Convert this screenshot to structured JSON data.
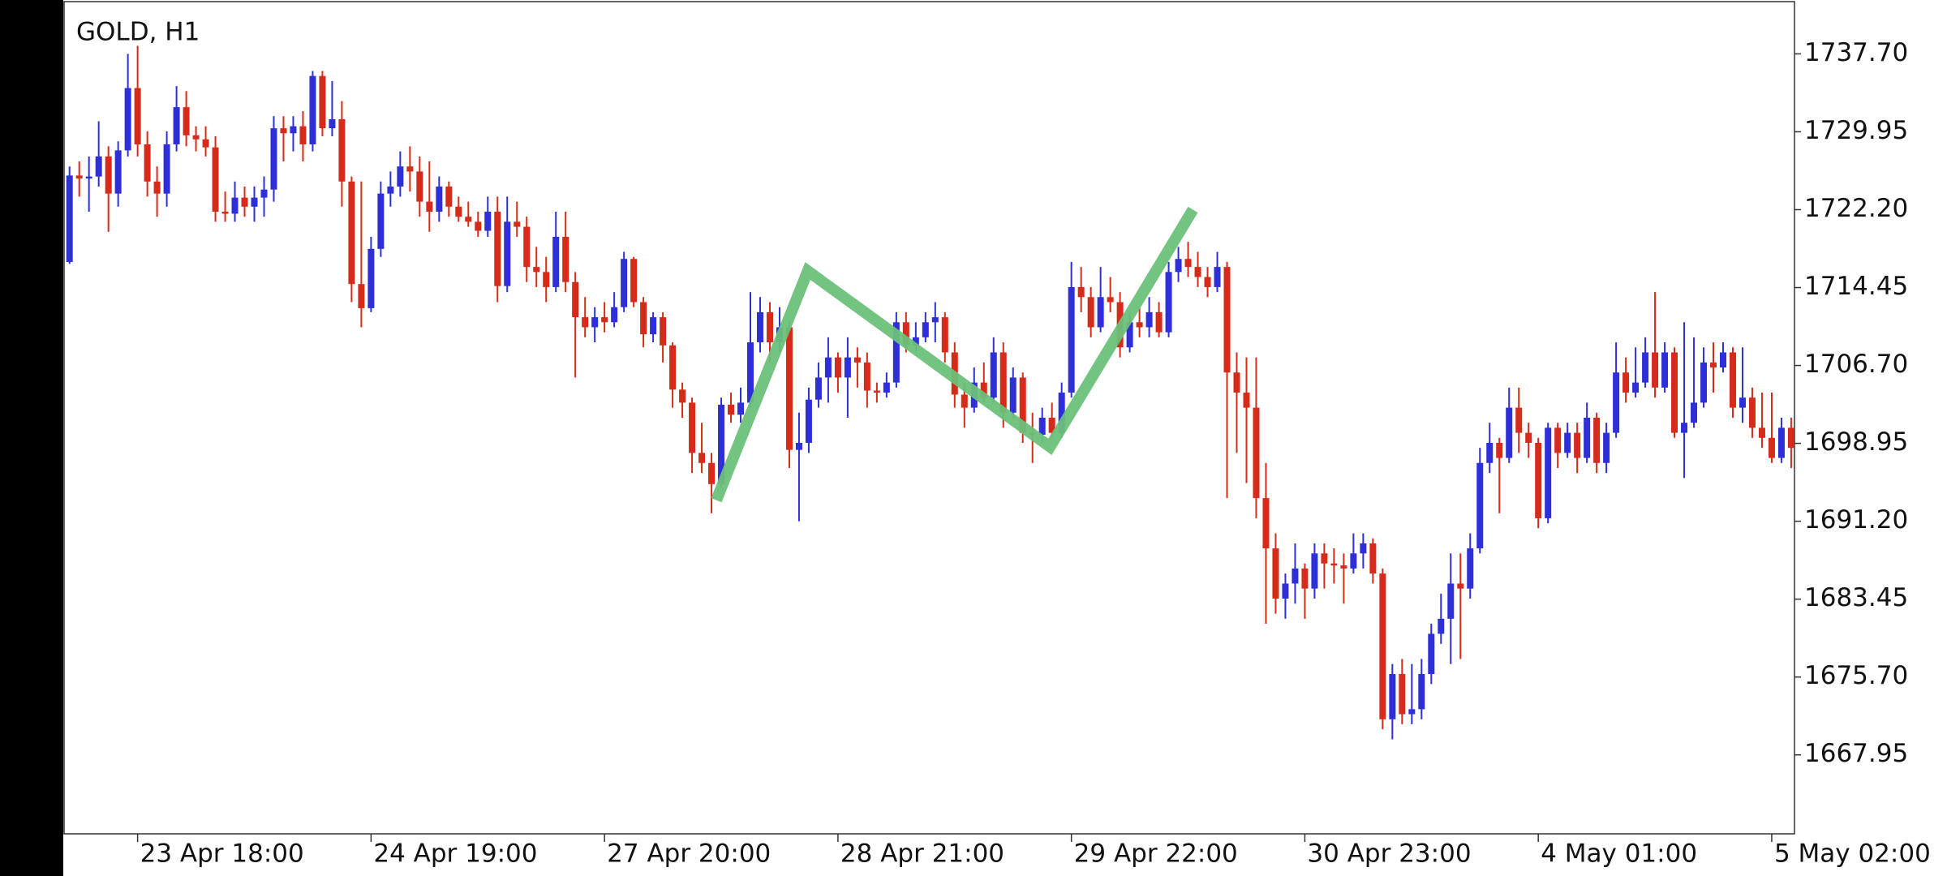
{
  "chart_data": {
    "type": "candlestick",
    "title": "GOLD, H1",
    "up_color": "#2f2fd8",
    "down_color": "#d42b1b",
    "ylim": [
      1660.1,
      1742.9
    ],
    "yticks": [
      1667.95,
      {
        "value": 1675.7,
        "label": "1675.70"
      },
      1683.45,
      {
        "value": 1691.2,
        "label": "1691.20"
      },
      1698.95,
      {
        "value": 1706.7,
        "label": "1706.70"
      },
      1714.45,
      {
        "value": 1722.2,
        "label": "1722.20"
      },
      1729.95,
      {
        "value": 1737.7,
        "label": "1737.70"
      }
    ],
    "x": [
      null,
      null,
      null,
      null,
      null,
      null,
      null,
      "23 Apr 18:00",
      null,
      null,
      null,
      null,
      null,
      null,
      null,
      null,
      null,
      null,
      null,
      null,
      null,
      null,
      null,
      null,
      null,
      null,
      null,
      null,
      null,
      null,
      null,
      "24 Apr 19:00",
      null,
      null,
      null,
      null,
      null,
      null,
      null,
      null,
      null,
      null,
      null,
      null,
      null,
      null,
      null,
      null,
      null,
      null,
      null,
      null,
      null,
      null,
      null,
      "27 Apr 20:00",
      null,
      null,
      null,
      null,
      null,
      null,
      null,
      null,
      null,
      null,
      null,
      null,
      null,
      null,
      null,
      null,
      null,
      null,
      null,
      null,
      null,
      null,
      null,
      "28 Apr 21:00",
      null,
      null,
      null,
      null,
      null,
      null,
      null,
      null,
      null,
      null,
      null,
      null,
      null,
      null,
      null,
      null,
      null,
      null,
      null,
      null,
      null,
      null,
      null,
      "29 Apr 22:00",
      null,
      null,
      null,
      null,
      null,
      null,
      null,
      null,
      null,
      null,
      null,
      null,
      null,
      null,
      null,
      null,
      null,
      null,
      null,
      null,
      null,
      null,
      null,
      "30 Apr 23:00",
      null,
      null,
      null,
      null,
      null,
      null,
      null,
      null,
      null,
      null,
      null,
      null,
      null,
      null,
      null,
      null,
      null,
      null,
      null,
      null,
      null,
      null,
      null,
      "4 May 01:00",
      null,
      null,
      null,
      null,
      null,
      null,
      null,
      null,
      null,
      null,
      null,
      null,
      null,
      null,
      null,
      null,
      null,
      null,
      null,
      null,
      null,
      null,
      null,
      "5 May 02:00",
      null,
      null
    ],
    "ohlc": [
      [
        1717.0,
        1726.5,
        1716.8,
        1725.6
      ],
      [
        1725.6,
        1727.0,
        1723.5,
        1725.3
      ],
      [
        1725.3,
        1727.5,
        1722.0,
        1725.5
      ],
      [
        1725.5,
        1731.0,
        1724.5,
        1727.5
      ],
      [
        1727.5,
        1728.5,
        1720.0,
        1723.8
      ],
      [
        1723.8,
        1729.0,
        1722.5,
        1728.1
      ],
      [
        1728.1,
        1737.7,
        1727.5,
        1734.3
      ],
      [
        1734.3,
        1738.5,
        1727.5,
        1728.7
      ],
      [
        1728.7,
        1730.0,
        1723.5,
        1725.0
      ],
      [
        1725.0,
        1726.5,
        1721.5,
        1723.8
      ],
      [
        1723.8,
        1730.0,
        1722.5,
        1728.7
      ],
      [
        1728.7,
        1734.5,
        1728.0,
        1732.4
      ],
      [
        1732.4,
        1734.0,
        1728.5,
        1729.6
      ],
      [
        1729.6,
        1730.5,
        1728.0,
        1729.2
      ],
      [
        1729.2,
        1730.5,
        1727.5,
        1728.4
      ],
      [
        1728.4,
        1729.5,
        1721.0,
        1722.0
      ],
      [
        1722.0,
        1724.0,
        1721.0,
        1721.8
      ],
      [
        1721.8,
        1725.0,
        1721.0,
        1723.4
      ],
      [
        1723.4,
        1724.5,
        1721.5,
        1722.5
      ],
      [
        1722.5,
        1724.5,
        1721.0,
        1723.4
      ],
      [
        1723.4,
        1725.5,
        1721.5,
        1724.2
      ],
      [
        1724.2,
        1731.5,
        1723.0,
        1730.3
      ],
      [
        1730.3,
        1731.5,
        1727.0,
        1729.8
      ],
      [
        1729.8,
        1731.5,
        1728.0,
        1730.5
      ],
      [
        1730.5,
        1732.0,
        1727.0,
        1728.7
      ],
      [
        1728.7,
        1736.0,
        1728.0,
        1735.5
      ],
      [
        1735.5,
        1736.0,
        1729.5,
        1730.3
      ],
      [
        1730.3,
        1735.0,
        1729.5,
        1731.2
      ],
      [
        1731.2,
        1733.0,
        1722.5,
        1725.0
      ],
      [
        1725.0,
        1725.5,
        1713.0,
        1714.8
      ],
      [
        1714.8,
        1725.0,
        1710.5,
        1712.4
      ],
      [
        1712.4,
        1719.5,
        1712.0,
        1718.3
      ],
      [
        1718.3,
        1725.0,
        1717.5,
        1723.8
      ],
      [
        1723.8,
        1726.0,
        1722.5,
        1724.5
      ],
      [
        1724.5,
        1728.0,
        1723.5,
        1726.5
      ],
      [
        1726.5,
        1728.5,
        1724.0,
        1726.0
      ],
      [
        1726.0,
        1727.5,
        1721.5,
        1723.0
      ],
      [
        1723.0,
        1727.0,
        1720.0,
        1722.0
      ],
      [
        1722.0,
        1725.5,
        1721.0,
        1724.5
      ],
      [
        1724.5,
        1725.0,
        1721.5,
        1722.5
      ],
      [
        1722.5,
        1723.5,
        1721.0,
        1721.5
      ],
      [
        1721.5,
        1723.0,
        1720.5,
        1721.0
      ],
      [
        1721.0,
        1722.0,
        1719.5,
        1720.1
      ],
      [
        1720.1,
        1723.5,
        1719.5,
        1722.0
      ],
      [
        1722.0,
        1723.5,
        1713.0,
        1714.6
      ],
      [
        1714.6,
        1723.5,
        1714.0,
        1721.0
      ],
      [
        1721.0,
        1723.0,
        1719.5,
        1720.5
      ],
      [
        1720.5,
        1721.5,
        1715.0,
        1716.5
      ],
      [
        1716.5,
        1718.5,
        1714.5,
        1716.0
      ],
      [
        1716.0,
        1717.5,
        1713.0,
        1714.5
      ],
      [
        1714.5,
        1722.0,
        1714.0,
        1719.5
      ],
      [
        1719.5,
        1722.0,
        1714.0,
        1715.0
      ],
      [
        1715.0,
        1716.0,
        1705.5,
        1711.5
      ],
      [
        1711.5,
        1713.5,
        1709.5,
        1710.5
      ],
      [
        1710.5,
        1712.5,
        1709.0,
        1711.5
      ],
      [
        1711.5,
        1713.0,
        1710.0,
        1711.0
      ],
      [
        1711.0,
        1714.0,
        1710.5,
        1712.5
      ],
      [
        1712.5,
        1718.0,
        1712.0,
        1717.3
      ],
      [
        1717.3,
        1717.5,
        1712.5,
        1713.0
      ],
      [
        1713.0,
        1713.5,
        1708.5,
        1709.8
      ],
      [
        1709.8,
        1712.0,
        1709.0,
        1711.5
      ],
      [
        1711.5,
        1712.0,
        1707.0,
        1708.7
      ],
      [
        1708.7,
        1709.0,
        1702.5,
        1704.3
      ],
      [
        1704.3,
        1705.0,
        1701.5,
        1703.0
      ],
      [
        1703.0,
        1703.5,
        1696.0,
        1698.0
      ],
      [
        1698.0,
        1701.0,
        1696.0,
        1697.0
      ],
      [
        1697.0,
        1698.0,
        1692.0,
        1694.9
      ],
      [
        1694.9,
        1703.5,
        1694.5,
        1702.8
      ],
      [
        1702.8,
        1704.0,
        1701.0,
        1701.8
      ],
      [
        1701.8,
        1704.5,
        1701.0,
        1703.0
      ],
      [
        1703.0,
        1714.0,
        1702.5,
        1709.0
      ],
      [
        1709.0,
        1713.5,
        1708.0,
        1712.0
      ],
      [
        1712.0,
        1713.0,
        1707.0,
        1709.0
      ],
      [
        1709.0,
        1712.5,
        1708.0,
        1710.5
      ],
      [
        1710.5,
        1711.0,
        1696.5,
        1698.3
      ],
      [
        1698.3,
        1702.0,
        1691.2,
        1699.0
      ],
      [
        1699.0,
        1704.5,
        1698.0,
        1703.3
      ],
      [
        1703.3,
        1707.0,
        1702.5,
        1705.5
      ],
      [
        1705.5,
        1709.5,
        1703.0,
        1707.5
      ],
      [
        1707.5,
        1708.0,
        1704.0,
        1705.5
      ],
      [
        1705.5,
        1709.5,
        1701.5,
        1707.5
      ],
      [
        1707.5,
        1708.5,
        1704.5,
        1707.0
      ],
      [
        1707.0,
        1708.0,
        1702.5,
        1704.2
      ],
      [
        1704.2,
        1705.0,
        1703.0,
        1704.0
      ],
      [
        1704.0,
        1706.0,
        1703.5,
        1705.0
      ],
      [
        1705.0,
        1712.0,
        1704.5,
        1711.0
      ],
      [
        1711.0,
        1712.0,
        1708.0,
        1708.7
      ],
      [
        1708.7,
        1711.0,
        1708.0,
        1709.5
      ],
      [
        1709.5,
        1712.0,
        1709.0,
        1711.0
      ],
      [
        1711.0,
        1713.0,
        1709.0,
        1711.5
      ],
      [
        1711.5,
        1712.0,
        1707.0,
        1708.0
      ],
      [
        1708.0,
        1709.0,
        1702.5,
        1703.8
      ],
      [
        1703.8,
        1705.0,
        1700.5,
        1702.5
      ],
      [
        1702.5,
        1706.5,
        1702.0,
        1705.0
      ],
      [
        1705.0,
        1707.0,
        1703.0,
        1703.5
      ],
      [
        1703.5,
        1709.5,
        1703.0,
        1708.0
      ],
      [
        1708.0,
        1709.0,
        1700.5,
        1702.0
      ],
      [
        1702.0,
        1706.5,
        1701.5,
        1705.5
      ],
      [
        1705.5,
        1706.0,
        1699.0,
        1700.0
      ],
      [
        1700.0,
        1702.0,
        1697.0,
        1699.8
      ],
      [
        1699.8,
        1702.5,
        1699.0,
        1701.5
      ],
      [
        1701.5,
        1703.0,
        1699.5,
        1700.0
      ],
      [
        1700.0,
        1705.0,
        1699.5,
        1704.0
      ],
      [
        1704.0,
        1717.0,
        1703.5,
        1714.5
      ],
      [
        1714.5,
        1716.5,
        1712.0,
        1713.5
      ],
      [
        1713.5,
        1714.5,
        1709.5,
        1710.5
      ],
      [
        1710.5,
        1716.5,
        1710.0,
        1713.5
      ],
      [
        1713.5,
        1715.5,
        1712.0,
        1713.0
      ],
      [
        1713.0,
        1714.0,
        1707.5,
        1708.5
      ],
      [
        1708.5,
        1712.0,
        1708.0,
        1711.0
      ],
      [
        1711.0,
        1712.5,
        1709.5,
        1710.5
      ],
      [
        1710.5,
        1713.5,
        1709.5,
        1712.0
      ],
      [
        1712.0,
        1713.0,
        1709.5,
        1710.0
      ],
      [
        1710.0,
        1717.0,
        1709.5,
        1716.0
      ],
      [
        1716.0,
        1718.5,
        1715.0,
        1717.3
      ],
      [
        1717.3,
        1719.0,
        1715.5,
        1716.5
      ],
      [
        1716.5,
        1718.0,
        1714.5,
        1715.5
      ],
      [
        1715.5,
        1716.5,
        1713.5,
        1714.5
      ],
      [
        1714.5,
        1718.0,
        1714.0,
        1716.5
      ],
      [
        1716.5,
        1717.0,
        1693.5,
        1706.0
      ],
      [
        1706.0,
        1708.0,
        1698.0,
        1704.0
      ],
      [
        1704.0,
        1707.5,
        1695.0,
        1702.5
      ],
      [
        1702.5,
        1707.5,
        1691.5,
        1693.5
      ],
      [
        1693.5,
        1697.0,
        1681.0,
        1688.5
      ],
      [
        1688.5,
        1690.0,
        1682.0,
        1683.5
      ],
      [
        1683.5,
        1686.0,
        1681.5,
        1685.0
      ],
      [
        1685.0,
        1689.0,
        1683.0,
        1686.5
      ],
      [
        1686.5,
        1687.0,
        1681.5,
        1684.5
      ],
      [
        1684.5,
        1689.0,
        1683.5,
        1688.0
      ],
      [
        1688.0,
        1689.0,
        1684.5,
        1687.0
      ],
      [
        1687.0,
        1688.5,
        1685.0,
        1686.8
      ],
      [
        1686.8,
        1688.0,
        1683.0,
        1686.5
      ],
      [
        1686.5,
        1690.0,
        1686.0,
        1688.0
      ],
      [
        1688.0,
        1690.0,
        1686.5,
        1689.0
      ],
      [
        1689.0,
        1689.5,
        1685.0,
        1686.0
      ],
      [
        1686.0,
        1686.5,
        1670.5,
        1671.5
      ],
      [
        1671.5,
        1677.0,
        1669.5,
        1676.0
      ],
      [
        1676.0,
        1677.5,
        1671.0,
        1672.0
      ],
      [
        1672.0,
        1677.0,
        1671.0,
        1672.5
      ],
      [
        1672.5,
        1677.5,
        1671.5,
        1676.0
      ],
      [
        1676.0,
        1681.0,
        1675.0,
        1680.0
      ],
      [
        1680.0,
        1684.0,
        1679.0,
        1681.5
      ],
      [
        1681.5,
        1688.0,
        1677.0,
        1685.0
      ],
      [
        1685.0,
        1688.0,
        1677.5,
        1684.5
      ],
      [
        1684.5,
        1690.0,
        1683.5,
        1688.5
      ],
      [
        1688.5,
        1698.5,
        1688.0,
        1697.0
      ],
      [
        1697.0,
        1701.0,
        1696.0,
        1699.0
      ],
      [
        1699.0,
        1699.5,
        1692.0,
        1697.5
      ],
      [
        1697.5,
        1704.5,
        1697.0,
        1702.5
      ],
      [
        1702.5,
        1704.5,
        1698.0,
        1700.0
      ],
      [
        1700.0,
        1701.0,
        1697.5,
        1699.0
      ],
      [
        1699.0,
        1699.5,
        1690.5,
        1691.5
      ],
      [
        1691.5,
        1701.0,
        1691.0,
        1700.5
      ],
      [
        1700.5,
        1701.0,
        1696.5,
        1698.0
      ],
      [
        1698.0,
        1701.0,
        1697.5,
        1700.0
      ],
      [
        1700.0,
        1701.0,
        1696.0,
        1697.5
      ],
      [
        1697.5,
        1703.0,
        1697.0,
        1701.5
      ],
      [
        1701.5,
        1702.0,
        1696.0,
        1697.0
      ],
      [
        1697.0,
        1701.0,
        1696.0,
        1700.0
      ],
      [
        1700.0,
        1709.0,
        1699.5,
        1706.0
      ],
      [
        1706.0,
        1707.5,
        1703.0,
        1704.0
      ],
      [
        1704.0,
        1708.5,
        1703.5,
        1705.0
      ],
      [
        1705.0,
        1709.5,
        1704.5,
        1708.0
      ],
      [
        1708.0,
        1714.0,
        1703.5,
        1704.5
      ],
      [
        1704.5,
        1709.0,
        1704.0,
        1708.0
      ],
      [
        1708.0,
        1708.5,
        1699.5,
        1700.0
      ],
      [
        1700.0,
        1711.0,
        1695.5,
        1701.0
      ],
      [
        1701.0,
        1709.5,
        1700.5,
        1703.0
      ],
      [
        1703.0,
        1708.5,
        1702.5,
        1707.0
      ],
      [
        1707.0,
        1709.0,
        1704.0,
        1706.5
      ],
      [
        1706.5,
        1709.0,
        1706.0,
        1708.0
      ],
      [
        1708.0,
        1708.5,
        1701.5,
        1702.5
      ],
      [
        1702.5,
        1708.5,
        1701.0,
        1703.5
      ],
      [
        1703.5,
        1704.5,
        1699.5,
        1700.5
      ],
      [
        1700.5,
        1704.0,
        1698.5,
        1699.5
      ],
      [
        1699.5,
        1704.0,
        1697.0,
        1697.5
      ],
      [
        1697.5,
        1701.5,
        1697.0,
        1700.5
      ],
      [
        1700.5,
        1701.5,
        1696.5,
        1698.5
      ]
    ],
    "zigzag": {
      "color": "#6cc07a",
      "x": [
        66.5,
        75.9,
        100.8,
        115.5
      ],
      "y": [
        1693.3,
        1716.1,
        1698.6,
        1722.2
      ]
    }
  }
}
